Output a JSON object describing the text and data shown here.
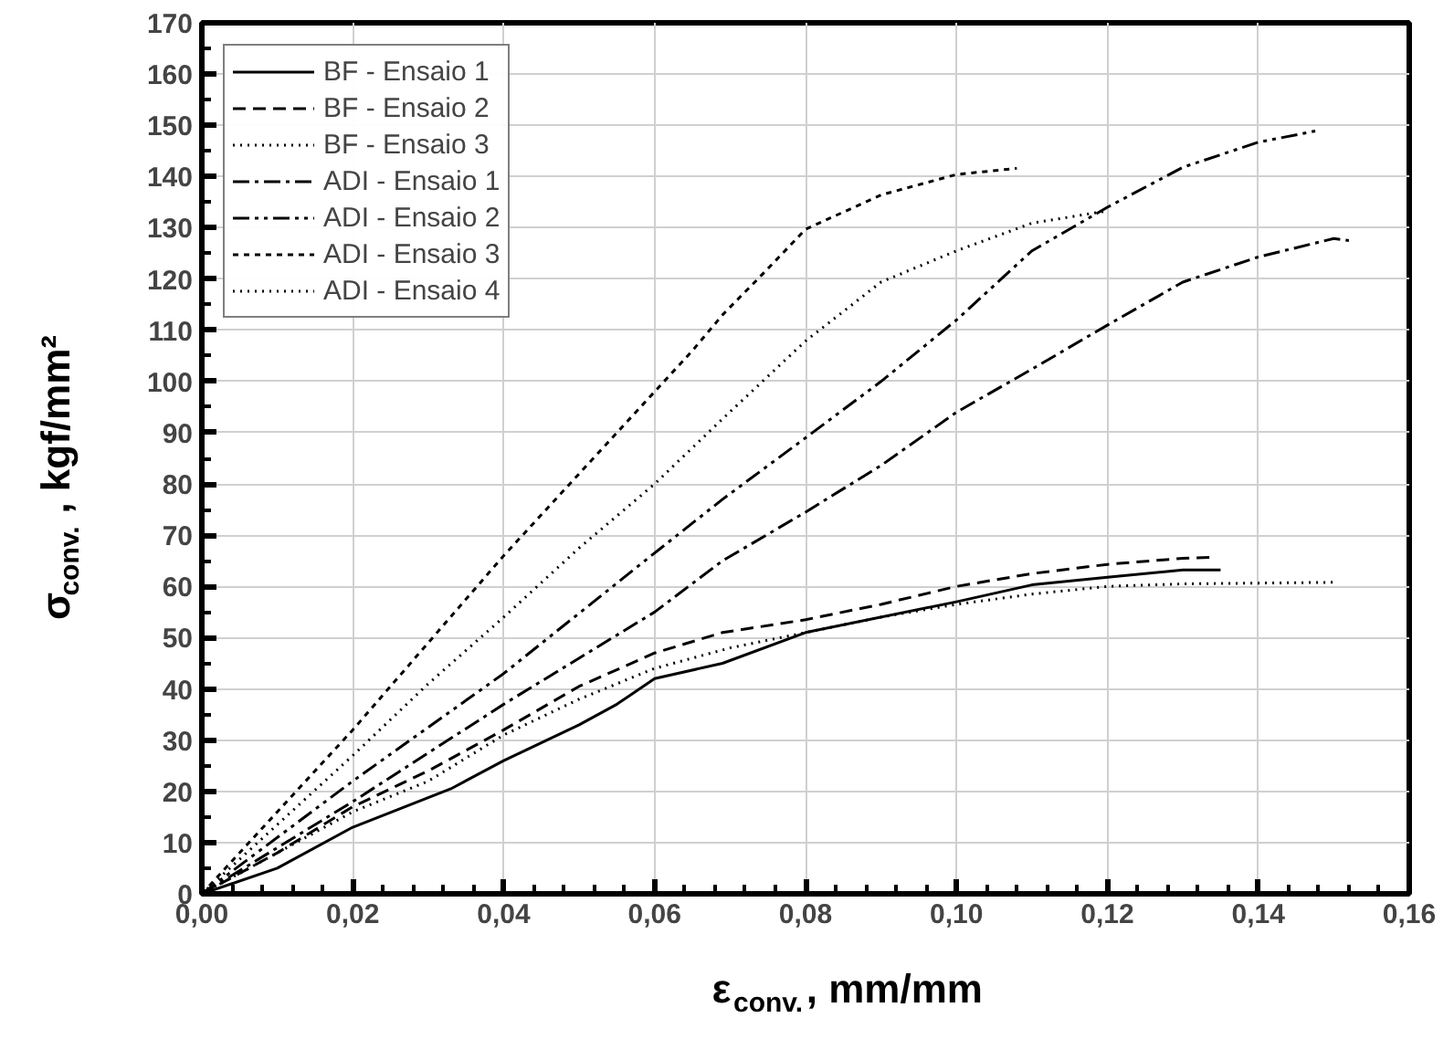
{
  "chart_data": {
    "type": "line",
    "xlabel": "ε$_{conv.}$, mm/mm",
    "ylabel": "σ$_{conv.}$, kgf/mm²",
    "xlim": [
      0,
      0.16
    ],
    "ylim": [
      0,
      170
    ],
    "xticks": [
      {
        "value": 0,
        "label": "0,00"
      },
      {
        "value": 0.02,
        "label": "0,02"
      },
      {
        "value": 0.04,
        "label": "0,04"
      },
      {
        "value": 0.06,
        "label": "0,06"
      },
      {
        "value": 0.08,
        "label": "0,08"
      },
      {
        "value": 0.1,
        "label": "0,10"
      },
      {
        "value": 0.12,
        "label": "0,12"
      },
      {
        "value": 0.14,
        "label": "0,14"
      },
      {
        "value": 0.16,
        "label": "0,16"
      }
    ],
    "yticks": [
      0,
      10,
      20,
      30,
      40,
      50,
      60,
      70,
      80,
      90,
      100,
      110,
      120,
      130,
      140,
      150,
      160,
      170
    ],
    "grid": true,
    "legend": "top left",
    "marker": "none",
    "series": [
      {
        "name": "BF - Ensaio 1",
        "color": "#000000",
        "line_style": "solid",
        "x": [
          0,
          0.01,
          0.02,
          0.033,
          0.04,
          0.05,
          0.055,
          0.06,
          0.069,
          0.08,
          0.1,
          0.11,
          0.12,
          0.13,
          0.135
        ],
        "values": [
          0,
          5,
          13,
          20.5,
          26,
          33,
          37,
          42,
          45,
          51,
          57,
          60.3,
          61.8,
          63.2,
          63.2
        ]
      },
      {
        "name": "BF - Ensaio 2",
        "color": "#000000",
        "line_style": "dashed",
        "x": [
          0,
          0.01,
          0.02,
          0.03,
          0.04,
          0.05,
          0.06,
          0.069,
          0.08,
          0.09,
          0.1,
          0.11,
          0.12,
          0.13,
          0.134
        ],
        "values": [
          0,
          8,
          17,
          24,
          32,
          40.5,
          47,
          51,
          53.5,
          56.5,
          60,
          62.5,
          64.3,
          65.5,
          65.7
        ]
      },
      {
        "name": "BF - Ensaio 3",
        "color": "#000000",
        "line_style": "dotted",
        "x": [
          0,
          0.01,
          0.02,
          0.03,
          0.04,
          0.05,
          0.06,
          0.07,
          0.08,
          0.09,
          0.1,
          0.11,
          0.12,
          0.13,
          0.15
        ],
        "values": [
          0,
          8,
          16,
          22,
          31,
          38,
          44,
          48,
          51,
          54,
          56.5,
          58.5,
          60,
          60.5,
          60.8
        ]
      },
      {
        "name": "ADI - Ensaio 1",
        "color": "#000000",
        "line_style": "dashdot",
        "x": [
          0,
          0.02,
          0.04,
          0.06,
          0.069,
          0.08,
          0.09,
          0.1,
          0.11,
          0.12,
          0.13,
          0.14,
          0.15,
          0.152
        ],
        "values": [
          0,
          18,
          37,
          55,
          65,
          74.5,
          83.6,
          94,
          102.4,
          111,
          119.4,
          124.3,
          127.9,
          127.5
        ]
      },
      {
        "name": "ADI - Ensaio 2",
        "color": "#000000",
        "line_style": "dashdotdot",
        "x": [
          0,
          0.02,
          0.04,
          0.0587,
          0.069,
          0.08,
          0.09,
          0.1,
          0.11,
          0.12,
          0.13,
          0.14,
          0.148
        ],
        "values": [
          0,
          22,
          43,
          65,
          77,
          89,
          100,
          112,
          125.5,
          134,
          141.8,
          146.7,
          149
        ]
      },
      {
        "name": "ADI - Ensaio 3",
        "color": "#000000",
        "line_style": "shortdash",
        "x": [
          0,
          0.01,
          0.02,
          0.03,
          0.04,
          0.05,
          0.06,
          0.065,
          0.069,
          0.075,
          0.08,
          0.09,
          0.1,
          0.108
        ],
        "values": [
          0,
          16,
          32,
          49,
          66,
          82,
          98,
          106,
          113,
          122,
          129.7,
          136.4,
          140.4,
          141.6
        ]
      },
      {
        "name": "ADI - Ensaio 4",
        "color": "#000000",
        "line_style": "dotted",
        "x": [
          0,
          0.01,
          0.02,
          0.03,
          0.04,
          0.05,
          0.06,
          0.069,
          0.08,
          0.09,
          0.1,
          0.11,
          0.12
        ],
        "values": [
          0,
          13.5,
          27,
          41,
          54,
          67.5,
          80,
          92.7,
          107.9,
          119.4,
          125.5,
          130.9,
          133.3
        ]
      }
    ]
  }
}
